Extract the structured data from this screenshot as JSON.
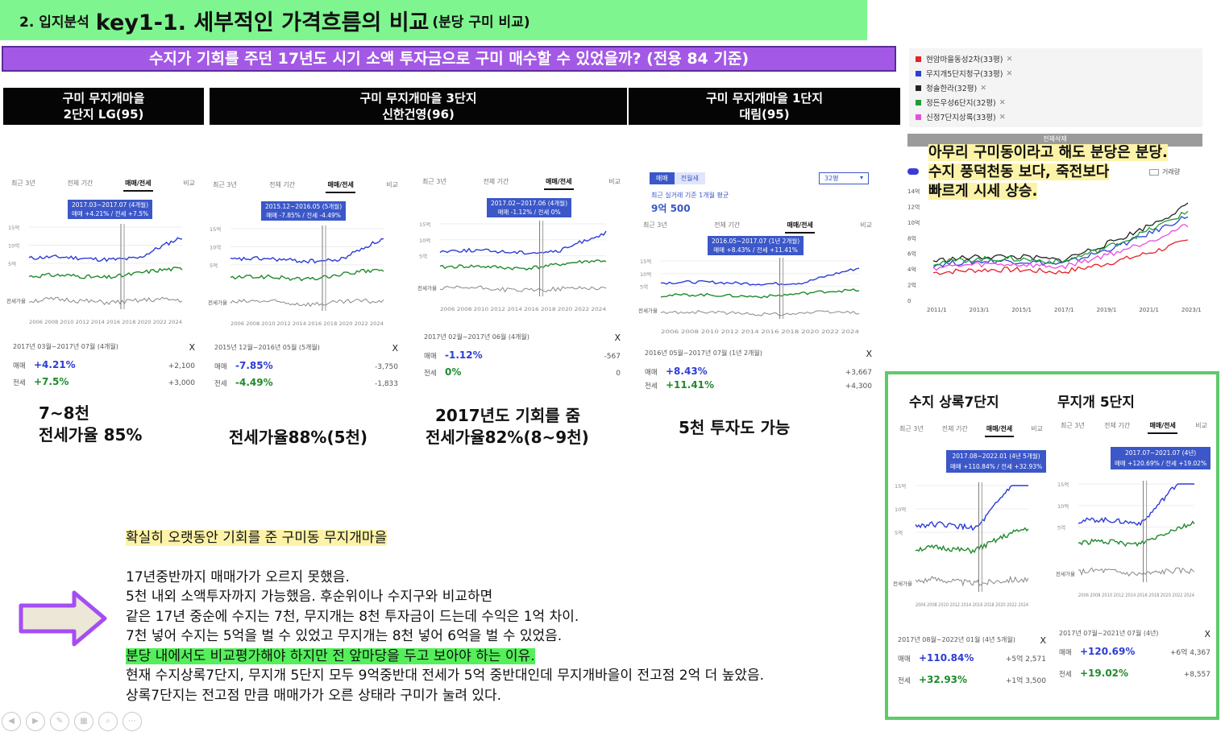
{
  "title": {
    "prefix": "2. 입지분석",
    "main": "key1-1. 세부적인 가격흐름의 비교",
    "suffix": "(분당 구미 비교)"
  },
  "subtitle": "수지가 기회를 주던 17년도 시기  소액 투자금으로 구미 매수할 수 있었을까? (전용 84 기준)",
  "apartments": [
    {
      "line1": "구미 무지개마을",
      "line2": "2단지 LG(95)"
    },
    {
      "line1": "구미 무지개마을 3단지",
      "line2": "신한건영(96)"
    },
    {
      "line1": "구미 무지개마을 1단지",
      "line2": "대림(95)"
    }
  ],
  "tabs": [
    "최근 3년",
    "전체 기간",
    "매매/전세",
    "비교"
  ],
  "panels": [
    {
      "tooltip1": "2017.03~2017.07 (4개월)",
      "tooltip2": "매매 +4.21% / 전세 +7.5%",
      "period": "2017년 03월~2017년 07월 (4개월)",
      "close": "X",
      "sale_label": "매매",
      "sale": "+4.21%",
      "sale_amt": "+2,100",
      "jeonse_label": "전세",
      "jeonse": "+7.5%",
      "jeonse_amt": "+3,000"
    },
    {
      "tooltip1": "2015.12~2016.05 (5개월)",
      "tooltip2": "매매 -7.85% / 전세 -4.49%",
      "period": "2015년 12월~2016년 05월 (5개월)",
      "close": "X",
      "sale_label": "매매",
      "sale": "-7.85%",
      "sale_amt": "-3,750",
      "jeonse_label": "전세",
      "jeonse": "-4.49%",
      "jeonse_amt": "-1,833"
    },
    {
      "tooltip1": "2017.02~2017.06 (4개월)",
      "tooltip2": "매매 -1.12% / 전세 0%",
      "period": "2017년 02월~2017년 06월 (4개월)",
      "close": "X",
      "sale_label": "매매",
      "sale": "-1.12%",
      "sale_amt": "-567",
      "jeonse_label": "전세",
      "jeonse": "0%",
      "jeonse_amt": "0"
    },
    {
      "tooltip1": "2016.05~2017.07 (1년 2개월)",
      "tooltip2": "매매 +8.43% / 전세 +11.41%",
      "period": "2016년 05월~2017년 07월 (1년 2개월)",
      "close": "X",
      "sale_label": "매매",
      "sale": "+8.43%",
      "sale_amt": "+3,667",
      "jeonse_label": "전세",
      "jeonse": "+11.41%",
      "jeonse_amt": "+4,300"
    }
  ],
  "panel4_extra": {
    "tab_sale": "매매",
    "tab_jeonse": "전월세",
    "size_select": "32평",
    "avg_label": "최근 실거래 기준 1개월 평균",
    "avg_price": "9억 500"
  },
  "axis_labels": {
    "y15": "15억",
    "y10": "10억",
    "y5": "5억",
    "y0": "0",
    "jeonse_rate": "전세가율",
    "years": "2006 2008 2010 2012 2014 2016 2018 2020 2022 2024"
  },
  "notes": [
    {
      "line1": "7~8천",
      "line2": "전세가율 85%"
    },
    {
      "line1": "전세가율88%(5천)"
    },
    {
      "line1": "2017년도 기회를 줌",
      "line2": "전세가율82%(8~9천)"
    },
    {
      "line1": "5천 투자도 가능"
    }
  ],
  "legend": [
    {
      "label": "현암마을동성2차(33평)",
      "color": "#e8202a"
    },
    {
      "label": "무지개5단지청구(33평)",
      "color": "#2b3fd6"
    },
    {
      "label": "청솔한라(32평)",
      "color": "#222222"
    },
    {
      "label": "정든우성6단지(32평)",
      "color": "#1f9c33"
    },
    {
      "label": "신정7단지상록(33평)",
      "color": "#e74de0"
    }
  ],
  "legend_close": "✕",
  "delete_all": "전체삭제",
  "right_note": [
    "아무리 구미동이라고 해도 분당은 분당.",
    "수지 풍덕천동 보다, 죽전보다",
    "빠르게 시세 상승."
  ],
  "deal_volume": "거래량",
  "compare_chart": {
    "y_ticks": [
      "14억",
      "12억",
      "10억",
      "8억",
      "6억",
      "4억",
      "2억",
      "0"
    ],
    "x_ticks": [
      "2011/1",
      "2013/1",
      "2015/1",
      "2017/1",
      "2019/1",
      "2021/1",
      "2023/1"
    ]
  },
  "green_panels": [
    {
      "title": "수지 상록7단지",
      "tooltip1": "2017.08~2022.01 (4년 5개월)",
      "tooltip2": "매매 +110.84% / 전세 +32.93%",
      "period": "2017년 08월~2022년 01월 (4년 5개월)",
      "close": "X",
      "sale_label": "매매",
      "sale": "+110.84%",
      "sale_amt": "+5억 2,571",
      "jeonse_label": "전세",
      "jeonse": "+32.93%",
      "jeonse_amt": "+1억 3,500"
    },
    {
      "title": "무지개 5단지",
      "tooltip1": "2017.07~2021.07 (4년)",
      "tooltip2": "매매 +120.69% / 전세 +19.02%",
      "period": "2017년 07월~2021년 07월 (4년)",
      "close": "X",
      "sale_label": "매매",
      "sale": "+120.69%",
      "sale_amt": "+6억 4,367",
      "jeonse_label": "전세",
      "jeonse": "+19.02%",
      "jeonse_amt": "+8,557"
    }
  ],
  "bottom": {
    "headline": "확실히 오랫동안 기회를 준 구미동 무지개마을",
    "lines": [
      "17년중반까지 매매가가 오르지 못했음.",
      "5천 내외 소액투자까지 가능했음. 후순위이나 수지구와 비교하면",
      "같은 17년 중순에 수지는 7천, 무지개는 8천 투자금이 드는데 수익은 1억 차이.",
      "7천 넣어 수지는 5억을 벌 수 있었고 무지개는 8천 넣어 6억을 벌 수 있었음."
    ],
    "highlight": "분당 내에서도 비교평가해야 하지만 전 앞마당을 두고 보아야 하는 이유.",
    "lines2": [
      "현재 수지상록7단지, 무지개 5단지 모두 9억중반대 전세가 5억 중반대인데 무지개바을이 전고점 2억 더 높았음.",
      "상록7단지는 전고점 만큼 매매가가 오른 상태라 구미가 눌려 있다."
    ]
  },
  "colors": {
    "sale": "#2c3cd6",
    "jeonse": "#1f8a2c",
    "title_bg": "#7ff58f",
    "subtitle_bg": "#a359e6",
    "frame": "#5fc96a"
  }
}
